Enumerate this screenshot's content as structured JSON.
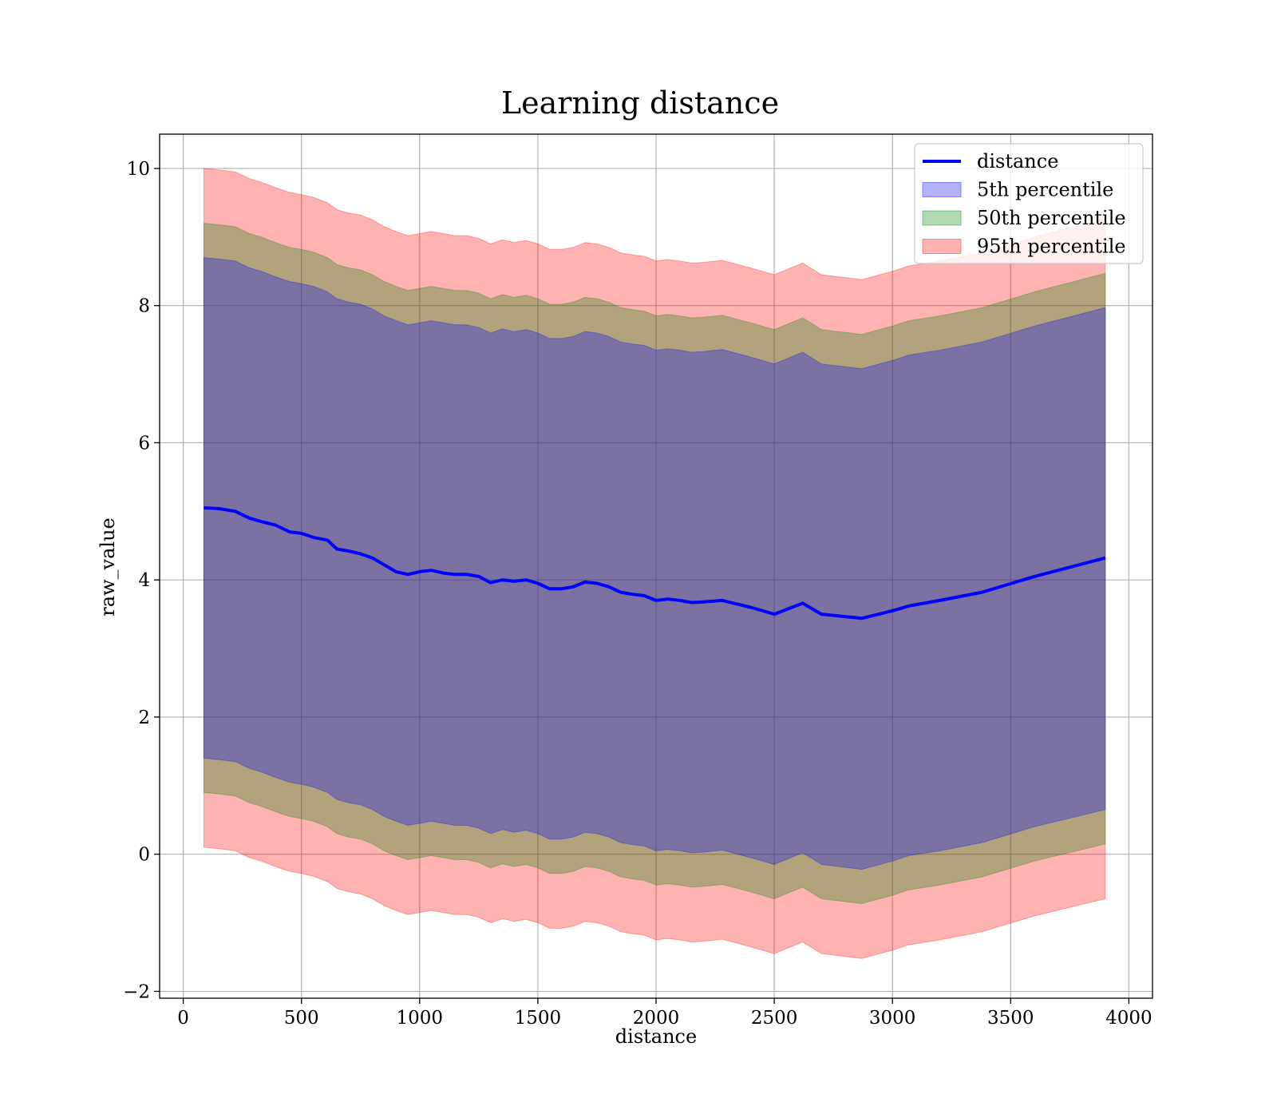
{
  "chart_data": {
    "type": "line",
    "title": "Learning distance",
    "xlabel": "distance",
    "ylabel": "raw_value",
    "xlim": [
      -100,
      4100
    ],
    "ylim": [
      -2.1,
      10.5
    ],
    "xticks": [
      0,
      500,
      1000,
      1500,
      2000,
      2500,
      3000,
      3500,
      4000
    ],
    "yticks": [
      -2,
      0,
      2,
      4,
      6,
      8,
      10
    ],
    "grid": true,
    "legend_position": "top-right",
    "legend": [
      "distance",
      "5th percentile",
      "50th percentile",
      "95th percentile"
    ],
    "x": [
      87,
      150,
      220,
      280,
      330,
      390,
      450,
      500,
      550,
      610,
      650,
      700,
      750,
      800,
      850,
      900,
      950,
      1000,
      1050,
      1100,
      1150,
      1200,
      1250,
      1300,
      1350,
      1400,
      1450,
      1500,
      1550,
      1600,
      1650,
      1700,
      1750,
      1800,
      1850,
      1900,
      1950,
      2000,
      2050,
      2100,
      2150,
      2200,
      2280,
      2400,
      2500,
      2620,
      2700,
      2870,
      3000,
      3070,
      3200,
      3380,
      3600,
      3900
    ],
    "series": [
      {
        "name": "distance",
        "kind": "line",
        "color": "#0000ff",
        "values": [
          5.05,
          5.04,
          5.0,
          4.9,
          4.85,
          4.8,
          4.7,
          4.68,
          4.62,
          4.58,
          4.45,
          4.42,
          4.38,
          4.32,
          4.22,
          4.12,
          4.08,
          4.12,
          4.14,
          4.1,
          4.08,
          4.08,
          4.05,
          3.96,
          4.0,
          3.98,
          4.0,
          3.95,
          3.87,
          3.87,
          3.9,
          3.97,
          3.95,
          3.9,
          3.82,
          3.79,
          3.77,
          3.7,
          3.72,
          3.7,
          3.67,
          3.68,
          3.7,
          3.6,
          3.5,
          3.66,
          3.5,
          3.44,
          3.55,
          3.62,
          3.7,
          3.82,
          4.05,
          4.32
        ]
      },
      {
        "name": "5th percentile",
        "kind": "band",
        "color": "#0000ff",
        "opacity": 0.3,
        "upper": [
          8.7,
          8.68,
          8.65,
          8.55,
          8.5,
          8.42,
          8.35,
          8.32,
          8.28,
          8.2,
          8.1,
          8.05,
          8.02,
          7.95,
          7.85,
          7.78,
          7.72,
          7.75,
          7.78,
          7.75,
          7.72,
          7.72,
          7.68,
          7.6,
          7.66,
          7.62,
          7.65,
          7.6,
          7.52,
          7.52,
          7.55,
          7.62,
          7.6,
          7.55,
          7.47,
          7.44,
          7.42,
          7.35,
          7.37,
          7.35,
          7.32,
          7.33,
          7.36,
          7.25,
          7.15,
          7.32,
          7.15,
          7.08,
          7.2,
          7.28,
          7.35,
          7.47,
          7.7,
          7.97
        ],
        "lower": [
          1.4,
          1.38,
          1.35,
          1.25,
          1.2,
          1.12,
          1.05,
          1.02,
          0.98,
          0.9,
          0.8,
          0.75,
          0.72,
          0.65,
          0.55,
          0.48,
          0.42,
          0.45,
          0.48,
          0.45,
          0.42,
          0.42,
          0.38,
          0.3,
          0.36,
          0.32,
          0.35,
          0.3,
          0.22,
          0.22,
          0.25,
          0.32,
          0.3,
          0.25,
          0.17,
          0.14,
          0.12,
          0.05,
          0.07,
          0.05,
          0.02,
          0.03,
          0.06,
          -0.05,
          -0.15,
          0.02,
          -0.15,
          -0.22,
          -0.1,
          -0.02,
          0.05,
          0.17,
          0.4,
          0.65
        ]
      },
      {
        "name": "50th percentile",
        "kind": "band",
        "color": "#008000",
        "opacity": 0.3,
        "upper": [
          9.2,
          9.18,
          9.15,
          9.05,
          9.0,
          8.92,
          8.85,
          8.82,
          8.78,
          8.7,
          8.6,
          8.55,
          8.52,
          8.45,
          8.35,
          8.28,
          8.22,
          8.25,
          8.28,
          8.25,
          8.22,
          8.22,
          8.18,
          8.1,
          8.16,
          8.12,
          8.15,
          8.1,
          8.02,
          8.02,
          8.05,
          8.12,
          8.1,
          8.05,
          7.97,
          7.94,
          7.92,
          7.85,
          7.87,
          7.85,
          7.82,
          7.83,
          7.86,
          7.75,
          7.65,
          7.82,
          7.65,
          7.58,
          7.7,
          7.78,
          7.85,
          7.97,
          8.2,
          8.47
        ],
        "lower": [
          0.9,
          0.88,
          0.85,
          0.75,
          0.7,
          0.62,
          0.55,
          0.52,
          0.48,
          0.4,
          0.3,
          0.25,
          0.22,
          0.15,
          0.05,
          -0.02,
          -0.08,
          -0.05,
          -0.02,
          -0.05,
          -0.08,
          -0.08,
          -0.12,
          -0.2,
          -0.14,
          -0.18,
          -0.15,
          -0.2,
          -0.28,
          -0.28,
          -0.25,
          -0.18,
          -0.2,
          -0.25,
          -0.33,
          -0.36,
          -0.38,
          -0.45,
          -0.43,
          -0.45,
          -0.48,
          -0.47,
          -0.44,
          -0.55,
          -0.65,
          -0.48,
          -0.65,
          -0.72,
          -0.6,
          -0.52,
          -0.45,
          -0.33,
          -0.1,
          0.15
        ]
      },
      {
        "name": "95th percentile",
        "kind": "band",
        "color": "#ff0000",
        "opacity": 0.3,
        "upper": [
          10.0,
          9.98,
          9.95,
          9.85,
          9.8,
          9.72,
          9.65,
          9.62,
          9.58,
          9.5,
          9.4,
          9.35,
          9.32,
          9.25,
          9.15,
          9.08,
          9.02,
          9.05,
          9.08,
          9.05,
          9.02,
          9.02,
          8.98,
          8.9,
          8.96,
          8.92,
          8.95,
          8.9,
          8.82,
          8.82,
          8.85,
          8.92,
          8.9,
          8.85,
          8.77,
          8.74,
          8.72,
          8.65,
          8.67,
          8.65,
          8.62,
          8.63,
          8.66,
          8.55,
          8.45,
          8.62,
          8.45,
          8.38,
          8.5,
          8.58,
          8.65,
          8.77,
          9.0,
          9.27
        ],
        "lower": [
          0.1,
          0.08,
          0.05,
          -0.05,
          -0.1,
          -0.18,
          -0.25,
          -0.28,
          -0.32,
          -0.4,
          -0.5,
          -0.55,
          -0.58,
          -0.65,
          -0.75,
          -0.82,
          -0.88,
          -0.85,
          -0.82,
          -0.85,
          -0.88,
          -0.88,
          -0.92,
          -1.0,
          -0.94,
          -0.98,
          -0.95,
          -1.0,
          -1.08,
          -1.08,
          -1.05,
          -0.98,
          -1.0,
          -1.05,
          -1.13,
          -1.16,
          -1.18,
          -1.25,
          -1.23,
          -1.25,
          -1.28,
          -1.27,
          -1.24,
          -1.35,
          -1.45,
          -1.28,
          -1.45,
          -1.52,
          -1.4,
          -1.32,
          -1.25,
          -1.13,
          -0.9,
          -0.65
        ]
      }
    ]
  }
}
